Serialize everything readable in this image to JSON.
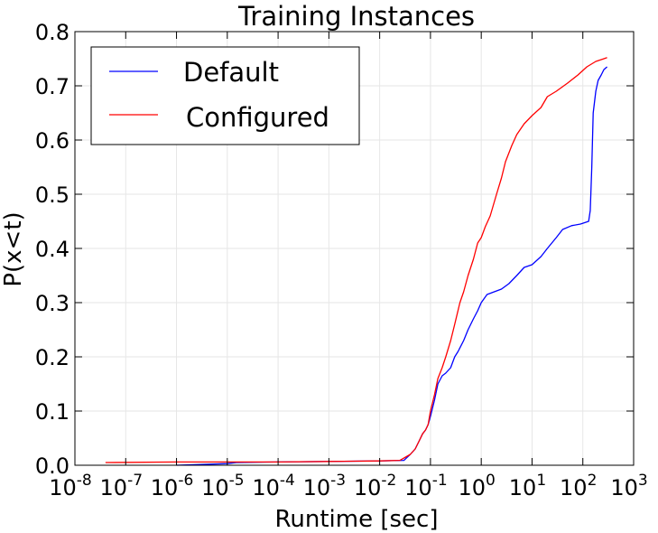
{
  "chart_data": {
    "type": "line",
    "title": "Training Instances",
    "xlabel": "Runtime [sec]",
    "ylabel": "P(x<t)",
    "x_scale": "log",
    "xlim": [
      1e-08,
      1000
    ],
    "ylim": [
      0,
      0.8
    ],
    "grid": true,
    "legend_position": "top-left",
    "x_ticks": [
      {
        "base": "10",
        "exp": "-8"
      },
      {
        "base": "10",
        "exp": "-7"
      },
      {
        "base": "10",
        "exp": "-6"
      },
      {
        "base": "10",
        "exp": "-5"
      },
      {
        "base": "10",
        "exp": "-4"
      },
      {
        "base": "10",
        "exp": "-3"
      },
      {
        "base": "10",
        "exp": "-2"
      },
      {
        "base": "10",
        "exp": "-1"
      },
      {
        "base": "10",
        "exp": "0"
      },
      {
        "base": "10",
        "exp": "1"
      },
      {
        "base": "10",
        "exp": "2"
      },
      {
        "base": "10",
        "exp": "3"
      }
    ],
    "y_ticks": [
      "0.0",
      "0.1",
      "0.2",
      "0.3",
      "0.4",
      "0.5",
      "0.6",
      "0.7",
      "0.8"
    ],
    "series": [
      {
        "name": "Default",
        "color": "#0000ff",
        "points": [
          [
            1e-06,
            0.0
          ],
          [
            1e-05,
            0.003
          ],
          [
            1.5e-05,
            0.005
          ],
          [
            0.0001,
            0.006
          ],
          [
            0.001,
            0.007
          ],
          [
            0.01,
            0.008
          ],
          [
            0.03,
            0.009
          ],
          [
            0.04,
            0.02
          ],
          [
            0.05,
            0.03
          ],
          [
            0.06,
            0.045
          ],
          [
            0.07,
            0.058
          ],
          [
            0.08,
            0.065
          ],
          [
            0.09,
            0.075
          ],
          [
            0.1,
            0.09
          ],
          [
            0.12,
            0.12
          ],
          [
            0.14,
            0.15
          ],
          [
            0.17,
            0.165
          ],
          [
            0.2,
            0.17
          ],
          [
            0.25,
            0.18
          ],
          [
            0.3,
            0.2
          ],
          [
            0.35,
            0.21
          ],
          [
            0.45,
            0.23
          ],
          [
            0.55,
            0.25
          ],
          [
            0.7,
            0.27
          ],
          [
            0.85,
            0.285
          ],
          [
            1.0,
            0.3
          ],
          [
            1.3,
            0.315
          ],
          [
            1.8,
            0.32
          ],
          [
            2.5,
            0.325
          ],
          [
            3.5,
            0.335
          ],
          [
            5.0,
            0.35
          ],
          [
            7.0,
            0.365
          ],
          [
            10,
            0.37
          ],
          [
            15,
            0.385
          ],
          [
            20,
            0.4
          ],
          [
            30,
            0.42
          ],
          [
            40,
            0.435
          ],
          [
            60,
            0.442
          ],
          [
            90,
            0.445
          ],
          [
            130,
            0.45
          ],
          [
            140,
            0.47
          ],
          [
            150,
            0.55
          ],
          [
            160,
            0.65
          ],
          [
            180,
            0.69
          ],
          [
            200,
            0.71
          ],
          [
            230,
            0.72
          ],
          [
            260,
            0.73
          ],
          [
            300,
            0.735
          ]
        ]
      },
      {
        "name": "Configured",
        "color": "#ff0000",
        "points": [
          [
            4e-08,
            0.005
          ],
          [
            1e-06,
            0.006
          ],
          [
            0.0001,
            0.006
          ],
          [
            0.001,
            0.007
          ],
          [
            0.01,
            0.008
          ],
          [
            0.025,
            0.009
          ],
          [
            0.04,
            0.02
          ],
          [
            0.05,
            0.03
          ],
          [
            0.06,
            0.045
          ],
          [
            0.07,
            0.058
          ],
          [
            0.08,
            0.065
          ],
          [
            0.09,
            0.075
          ],
          [
            0.1,
            0.1
          ],
          [
            0.12,
            0.13
          ],
          [
            0.14,
            0.16
          ],
          [
            0.17,
            0.18
          ],
          [
            0.2,
            0.2
          ],
          [
            0.25,
            0.23
          ],
          [
            0.3,
            0.26
          ],
          [
            0.38,
            0.3
          ],
          [
            0.45,
            0.32
          ],
          [
            0.55,
            0.35
          ],
          [
            0.7,
            0.38
          ],
          [
            0.85,
            0.41
          ],
          [
            1.0,
            0.42
          ],
          [
            1.2,
            0.44
          ],
          [
            1.5,
            0.46
          ],
          [
            2.0,
            0.5
          ],
          [
            2.5,
            0.53
          ],
          [
            3.0,
            0.56
          ],
          [
            4.0,
            0.59
          ],
          [
            5.0,
            0.61
          ],
          [
            7.0,
            0.63
          ],
          [
            10,
            0.645
          ],
          [
            15,
            0.66
          ],
          [
            20,
            0.68
          ],
          [
            30,
            0.69
          ],
          [
            50,
            0.705
          ],
          [
            80,
            0.72
          ],
          [
            120,
            0.735
          ],
          [
            180,
            0.745
          ],
          [
            260,
            0.75
          ],
          [
            300,
            0.752
          ]
        ]
      }
    ]
  }
}
